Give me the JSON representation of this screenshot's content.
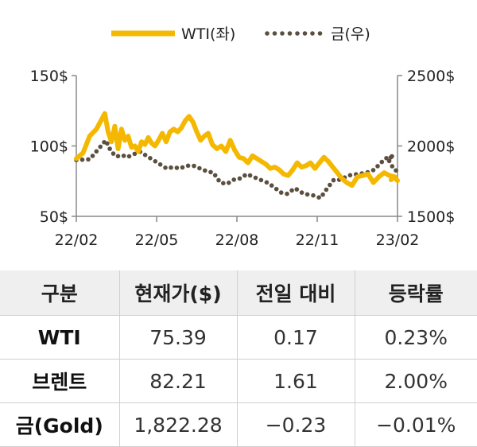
{
  "chart_data": {
    "type": "line",
    "title": "",
    "xlabel": "",
    "x_ticks": [
      "22/02",
      "22/05",
      "22/08",
      "22/11",
      "23/02"
    ],
    "y_left": {
      "ticks": [
        "150$",
        "100$",
        "50$"
      ],
      "range": [
        50,
        150
      ]
    },
    "y_right": {
      "ticks": [
        "2500$",
        "2000$",
        "1500$"
      ],
      "range": [
        1500,
        2500
      ]
    },
    "legend_position": "top-center",
    "series": [
      {
        "name": "WTI(좌)",
        "axis": "left",
        "color": "#f5b800",
        "style": "solid",
        "points": [
          [
            "22/02",
            91
          ],
          [
            "22/02",
            95
          ],
          [
            "22/02",
            107
          ],
          [
            "22/02",
            112
          ],
          [
            "22/03",
            123
          ],
          [
            "22/03",
            110
          ],
          [
            "22/03",
            103
          ],
          [
            "22/03",
            114
          ],
          [
            "22/03",
            98
          ],
          [
            "22/03",
            112
          ],
          [
            "22/03",
            104
          ],
          [
            "22/03",
            107
          ],
          [
            "22/04",
            99
          ],
          [
            "22/04",
            100
          ],
          [
            "22/04",
            96
          ],
          [
            "22/04",
            103
          ],
          [
            "22/04",
            101
          ],
          [
            "22/04",
            106
          ],
          [
            "22/04",
            102
          ],
          [
            "22/04",
            100
          ],
          [
            "22/05",
            104
          ],
          [
            "22/05",
            109
          ],
          [
            "22/05",
            103
          ],
          [
            "22/05",
            110
          ],
          [
            "22/05",
            112
          ],
          [
            "22/05",
            110
          ],
          [
            "22/05",
            113
          ],
          [
            "22/06",
            118
          ],
          [
            "22/06",
            121
          ],
          [
            "22/06",
            117
          ],
          [
            "22/06",
            110
          ],
          [
            "22/06",
            104
          ],
          [
            "22/06",
            107
          ],
          [
            "22/06",
            109
          ],
          [
            "22/07",
            101
          ],
          [
            "22/07",
            98
          ],
          [
            "22/07",
            100
          ],
          [
            "22/07",
            96
          ],
          [
            "22/07",
            104
          ],
          [
            "22/07",
            97
          ],
          [
            "22/08",
            92
          ],
          [
            "22/08",
            91
          ],
          [
            "22/08",
            88
          ],
          [
            "22/08",
            93
          ],
          [
            "22/08",
            91
          ],
          [
            "22/08",
            89
          ],
          [
            "22/09",
            87
          ],
          [
            "22/09",
            84
          ],
          [
            "22/09",
            85
          ],
          [
            "22/09",
            83
          ],
          [
            "22/09",
            80
          ],
          [
            "22/09",
            79
          ],
          [
            "22/10",
            83
          ],
          [
            "22/10",
            88
          ],
          [
            "22/10",
            85
          ],
          [
            "22/10",
            86
          ],
          [
            "22/10",
            88
          ],
          [
            "22/10",
            84
          ],
          [
            "22/11",
            88
          ],
          [
            "22/11",
            92
          ],
          [
            "22/11",
            89
          ],
          [
            "22/11",
            85
          ],
          [
            "22/11",
            81
          ],
          [
            "22/11",
            77
          ],
          [
            "22/12",
            74
          ],
          [
            "22/12",
            72
          ],
          [
            "22/12",
            78
          ],
          [
            "22/12",
            79
          ],
          [
            "22/12",
            80
          ],
          [
            "23/01",
            74
          ],
          [
            "23/01",
            78
          ],
          [
            "23/01",
            81
          ],
          [
            "23/01",
            79
          ],
          [
            "23/01",
            78
          ],
          [
            "23/02",
            76
          ],
          [
            "23/02",
            78
          ],
          [
            "23/02",
            75.39
          ]
        ]
      },
      {
        "name": "금(우)",
        "axis": "right",
        "color": "#5b5040",
        "style": "dotted",
        "points": [
          [
            "22/02",
            1900
          ],
          [
            "22/02",
            1905
          ],
          [
            "22/03",
            2040
          ],
          [
            "22/03",
            1960
          ],
          [
            "22/03",
            1925
          ],
          [
            "22/03",
            1935
          ],
          [
            "22/03",
            1920
          ],
          [
            "22/04",
            1940
          ],
          [
            "22/04",
            1960
          ],
          [
            "22/04",
            1930
          ],
          [
            "22/04",
            1900
          ],
          [
            "22/05",
            1870
          ],
          [
            "22/05",
            1840
          ],
          [
            "22/05",
            1850
          ],
          [
            "22/05",
            1840
          ],
          [
            "22/06",
            1860
          ],
          [
            "22/06",
            1860
          ],
          [
            "22/06",
            1840
          ],
          [
            "22/06",
            1820
          ],
          [
            "22/07",
            1810
          ],
          [
            "22/07",
            1740
          ],
          [
            "22/07",
            1730
          ],
          [
            "22/07",
            1760
          ],
          [
            "22/08",
            1770
          ],
          [
            "22/08",
            1800
          ],
          [
            "22/08",
            1780
          ],
          [
            "22/08",
            1760
          ],
          [
            "22/09",
            1740
          ],
          [
            "22/09",
            1710
          ],
          [
            "22/09",
            1670
          ],
          [
            "22/09",
            1660
          ],
          [
            "22/10",
            1700
          ],
          [
            "22/10",
            1660
          ],
          [
            "22/10",
            1650
          ],
          [
            "22/11",
            1630
          ],
          [
            "22/11",
            1700
          ],
          [
            "22/11",
            1760
          ],
          [
            "22/11",
            1760
          ],
          [
            "22/12",
            1790
          ],
          [
            "22/12",
            1800
          ],
          [
            "22/12",
            1810
          ],
          [
            "23/01",
            1830
          ],
          [
            "23/01",
            1880
          ],
          [
            "23/01",
            1920
          ],
          [
            "23/01",
            1930
          ],
          [
            "23/02",
            1910
          ],
          [
            "23/02",
            1870
          ],
          [
            "23/02",
            1830
          ],
          [
            "23/02",
            1822.28
          ]
        ]
      }
    ]
  },
  "table": {
    "headers": [
      "구분",
      "현재가($)",
      "전일 대비",
      "등락률"
    ],
    "rows": [
      [
        "WTI",
        "75.39",
        "0.17",
        "0.23%"
      ],
      [
        "브렌트",
        "82.21",
        "1.61",
        "2.00%"
      ],
      [
        "금(Gold)",
        "1,822.28",
        "−0.23",
        "−0.01%"
      ]
    ]
  }
}
